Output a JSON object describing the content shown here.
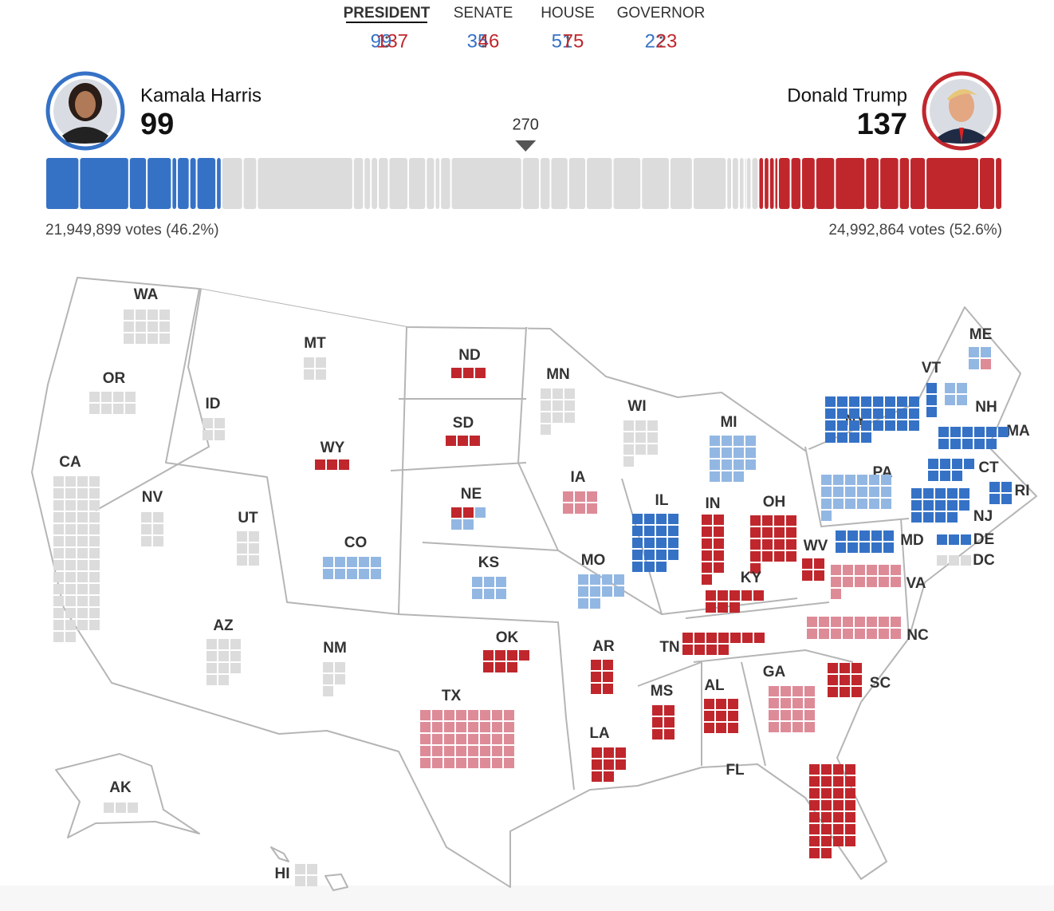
{
  "tabs": [
    {
      "label": "PRESIDENT",
      "dem": 99,
      "rep": 137
    },
    {
      "label": "SENATE",
      "dem": 35,
      "rep": 46
    },
    {
      "label": "HOUSE",
      "dem": 51,
      "rep": 75
    },
    {
      "label": "GOVERNOR",
      "dem": 22,
      "rep": 23
    }
  ],
  "candidates": {
    "dem": {
      "name": "Kamala Harris",
      "electoral_votes": 99,
      "votes": "21,949,899 votes (46.2%)"
    },
    "rep": {
      "name": "Donald Trump",
      "electoral_votes": 137,
      "votes": "24,992,864 votes (52.6%)"
    }
  },
  "threshold": 270,
  "colors": {
    "dem": "#3572c6",
    "lean-dem": "#93b7e3",
    "rep": "#c0272d",
    "lean-rep": "#de8b98",
    "none": "#dcdcdc"
  },
  "states": [
    {
      "label": "WA",
      "segments": [
        {
          "status": "none",
          "ev": 12
        }
      ]
    },
    {
      "label": "OR",
      "segments": [
        {
          "status": "none",
          "ev": 8
        }
      ]
    },
    {
      "label": "CA",
      "segments": [
        {
          "status": "none",
          "ev": 54
        }
      ]
    },
    {
      "label": "NV",
      "segments": [
        {
          "status": "none",
          "ev": 6
        }
      ]
    },
    {
      "label": "ID",
      "segments": [
        {
          "status": "none",
          "ev": 4
        }
      ]
    },
    {
      "label": "MT",
      "segments": [
        {
          "status": "none",
          "ev": 4
        }
      ]
    },
    {
      "label": "WY",
      "segments": [
        {
          "status": "rep",
          "ev": 3
        }
      ]
    },
    {
      "label": "UT",
      "segments": [
        {
          "status": "none",
          "ev": 6
        }
      ]
    },
    {
      "label": "AZ",
      "segments": [
        {
          "status": "none",
          "ev": 11
        }
      ]
    },
    {
      "label": "CO",
      "segments": [
        {
          "status": "lean-dem",
          "ev": 10
        }
      ]
    },
    {
      "label": "NM",
      "segments": [
        {
          "status": "none",
          "ev": 5
        }
      ]
    },
    {
      "label": "ND",
      "segments": [
        {
          "status": "rep",
          "ev": 3
        }
      ]
    },
    {
      "label": "SD",
      "segments": [
        {
          "status": "rep",
          "ev": 3
        }
      ]
    },
    {
      "label": "NE",
      "segments": [
        {
          "status": "rep",
          "ev": 2
        },
        {
          "status": "lean-dem",
          "ev": 3
        }
      ]
    },
    {
      "label": "KS",
      "segments": [
        {
          "status": "lean-dem",
          "ev": 6
        }
      ]
    },
    {
      "label": "OK",
      "segments": [
        {
          "status": "rep",
          "ev": 7
        }
      ]
    },
    {
      "label": "TX",
      "segments": [
        {
          "status": "lean-rep",
          "ev": 40
        }
      ]
    },
    {
      "label": "MN",
      "segments": [
        {
          "status": "none",
          "ev": 10
        }
      ]
    },
    {
      "label": "IA",
      "segments": [
        {
          "status": "lean-rep",
          "ev": 6
        }
      ]
    },
    {
      "label": "MO",
      "segments": [
        {
          "status": "lean-dem",
          "ev": 10
        }
      ]
    },
    {
      "label": "AR",
      "segments": [
        {
          "status": "rep",
          "ev": 6
        }
      ]
    },
    {
      "label": "LA",
      "segments": [
        {
          "status": "rep",
          "ev": 8
        }
      ]
    },
    {
      "label": "WI",
      "segments": [
        {
          "status": "none",
          "ev": 10
        }
      ]
    },
    {
      "label": "IL",
      "segments": [
        {
          "status": "dem",
          "ev": 19
        }
      ]
    },
    {
      "label": "MI",
      "segments": [
        {
          "status": "lean-dem",
          "ev": 15
        }
      ]
    },
    {
      "label": "IN",
      "segments": [
        {
          "status": "rep",
          "ev": 11
        }
      ]
    },
    {
      "label": "OH",
      "segments": [
        {
          "status": "rep",
          "ev": 17
        }
      ]
    },
    {
      "label": "KY",
      "segments": [
        {
          "status": "rep",
          "ev": 8
        }
      ]
    },
    {
      "label": "TN",
      "segments": [
        {
          "status": "rep",
          "ev": 11
        }
      ]
    },
    {
      "label": "MS",
      "segments": [
        {
          "status": "rep",
          "ev": 6
        }
      ]
    },
    {
      "label": "AL",
      "segments": [
        {
          "status": "rep",
          "ev": 9
        }
      ]
    },
    {
      "label": "GA",
      "segments": [
        {
          "status": "lean-rep",
          "ev": 16
        }
      ]
    },
    {
      "label": "FL",
      "segments": [
        {
          "status": "rep",
          "ev": 30
        }
      ]
    },
    {
      "label": "SC",
      "segments": [
        {
          "status": "rep",
          "ev": 9
        }
      ]
    },
    {
      "label": "NC",
      "segments": [
        {
          "status": "lean-rep",
          "ev": 16
        }
      ]
    },
    {
      "label": "VA",
      "segments": [
        {
          "status": "lean-rep",
          "ev": 13
        }
      ]
    },
    {
      "label": "WV",
      "segments": [
        {
          "status": "rep",
          "ev": 4
        }
      ]
    },
    {
      "label": "PA",
      "segments": [
        {
          "status": "lean-dem",
          "ev": 19
        }
      ]
    },
    {
      "label": "NY",
      "segments": [
        {
          "status": "dem",
          "ev": 28
        }
      ]
    },
    {
      "label": "MD",
      "segments": [
        {
          "status": "dem",
          "ev": 10
        }
      ]
    },
    {
      "label": "NJ",
      "segments": [
        {
          "status": "dem",
          "ev": 14
        }
      ]
    },
    {
      "label": "DE",
      "segments": [
        {
          "status": "dem",
          "ev": 3
        }
      ]
    },
    {
      "label": "DC",
      "segments": [
        {
          "status": "none",
          "ev": 3
        }
      ]
    },
    {
      "label": "CT",
      "segments": [
        {
          "status": "dem",
          "ev": 7
        }
      ]
    },
    {
      "label": "RI",
      "segments": [
        {
          "status": "dem",
          "ev": 4
        }
      ]
    },
    {
      "label": "MA",
      "segments": [
        {
          "status": "dem",
          "ev": 11
        }
      ]
    },
    {
      "label": "VT",
      "segments": [
        {
          "status": "dem",
          "ev": 3
        }
      ]
    },
    {
      "label": "NH",
      "segments": [
        {
          "status": "lean-dem",
          "ev": 4
        }
      ]
    },
    {
      "label": "ME",
      "segments": [
        {
          "status": "lean-dem",
          "ev": 3
        },
        {
          "status": "lean-rep",
          "ev": 1
        }
      ]
    },
    {
      "label": "AK",
      "segments": [
        {
          "status": "none",
          "ev": 3
        }
      ]
    },
    {
      "label": "HI",
      "segments": [
        {
          "status": "none",
          "ev": 4
        }
      ]
    }
  ]
}
